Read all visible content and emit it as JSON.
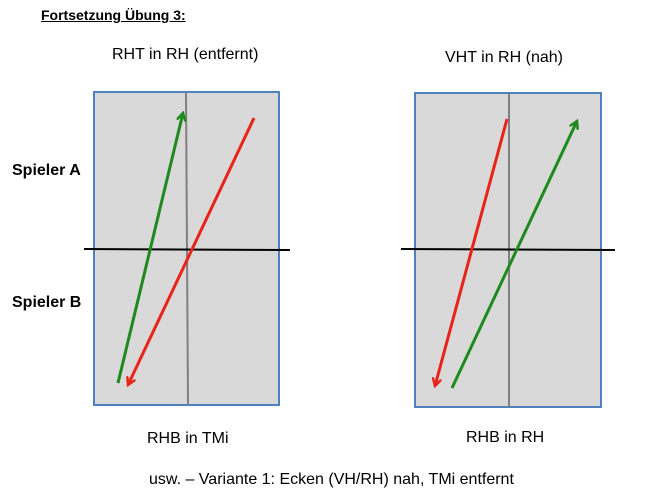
{
  "heading": "Fortsetzung Übung 3:",
  "left_panel": {
    "title": "RHT in RH (entfernt)",
    "bottom_label": "RHB in TMi"
  },
  "right_panel": {
    "title": "VHT in RH (nah)",
    "bottom_label": "RHB in RH"
  },
  "players": {
    "a": "Spieler A",
    "b": "Spieler B"
  },
  "footer": "usw. – Variante 1: Ecken (VH/RH) nah, TMi entfernt",
  "colors": {
    "court_fill": "#d9d9d9",
    "court_border": "#4f81bd",
    "net": "#000000",
    "center_line": "#808080",
    "green_arrow": "#1e8a1e",
    "red_arrow": "#e8231a"
  }
}
